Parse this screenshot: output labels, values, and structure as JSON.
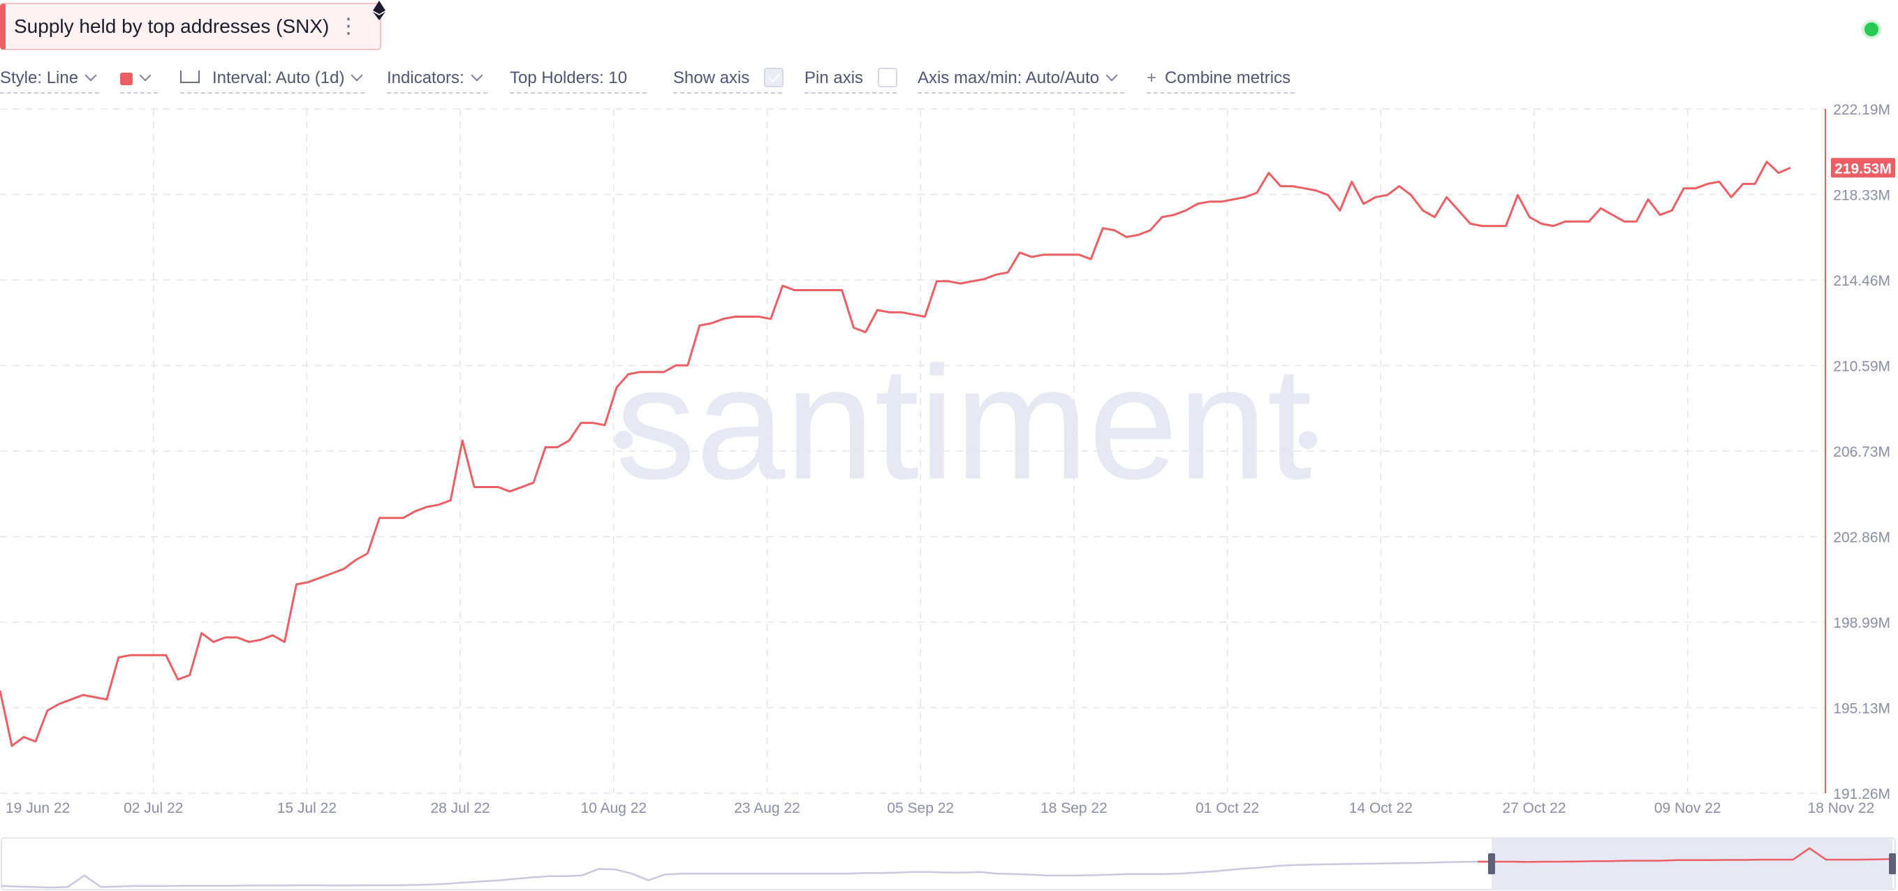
{
  "metric": {
    "title": "Supply held by top addresses (SNX)"
  },
  "toolbar": {
    "style_label": "Style: Line",
    "interval_label": "Interval: Auto (1d)",
    "indicators_label": "Indicators:",
    "top_holders_label": "Top Holders: 10",
    "show_axis_label": "Show axis",
    "show_axis_checked": true,
    "pin_axis_label": "Pin axis",
    "pin_axis_checked": false,
    "axis_maxmin_label": "Axis max/min: Auto/Auto",
    "combine_label": "Combine metrics"
  },
  "colors": {
    "series": "#eb5e64",
    "navigator_series": "#c7cade",
    "navigator_selection": "#e6e8f3"
  },
  "icons": [
    "kebab-menu-icon",
    "ethereum-icon",
    "chevron-down-icon",
    "ruler-icon",
    "plus-icon",
    "checkbox-icon",
    "status-dot-icon"
  ],
  "watermark": "santiment",
  "chart_data": {
    "type": "line",
    "series": [
      {
        "unit": "M",
        "last_value_label": "219.53M",
        "x": [
          "2022-06-19",
          "2022-06-20",
          "2022-06-21",
          "2022-06-22",
          "2022-06-23",
          "2022-06-24",
          "2022-06-25",
          "2022-06-26",
          "2022-06-27",
          "2022-06-28",
          "2022-06-29",
          "2022-06-30",
          "2022-07-01",
          "2022-07-02",
          "2022-07-03",
          "2022-07-04",
          "2022-07-05",
          "2022-07-06",
          "2022-07-07",
          "2022-07-08",
          "2022-07-09",
          "2022-07-10",
          "2022-07-11",
          "2022-07-12",
          "2022-07-13",
          "2022-07-14",
          "2022-07-15",
          "2022-07-16",
          "2022-07-17",
          "2022-07-18",
          "2022-07-19",
          "2022-07-20",
          "2022-07-21",
          "2022-07-22",
          "2022-07-23",
          "2022-07-24",
          "2022-07-25",
          "2022-07-26",
          "2022-07-27",
          "2022-07-28",
          "2022-07-29",
          "2022-07-30",
          "2022-07-31",
          "2022-08-01",
          "2022-08-02",
          "2022-08-03",
          "2022-08-04",
          "2022-08-05",
          "2022-08-06",
          "2022-08-07",
          "2022-08-08",
          "2022-08-09",
          "2022-08-10",
          "2022-08-11",
          "2022-08-12",
          "2022-08-13",
          "2022-08-14",
          "2022-08-15",
          "2022-08-16",
          "2022-08-17",
          "2022-08-18",
          "2022-08-19",
          "2022-08-20",
          "2022-08-21",
          "2022-08-22",
          "2022-08-23",
          "2022-08-24",
          "2022-08-25",
          "2022-08-26",
          "2022-08-27",
          "2022-08-28",
          "2022-08-29",
          "2022-08-30",
          "2022-08-31",
          "2022-09-01",
          "2022-09-02",
          "2022-09-03",
          "2022-09-04",
          "2022-09-05",
          "2022-09-06",
          "2022-09-07",
          "2022-09-08",
          "2022-09-09",
          "2022-09-10",
          "2022-09-11",
          "2022-09-12",
          "2022-09-13",
          "2022-09-14",
          "2022-09-15",
          "2022-09-16",
          "2022-09-17",
          "2022-09-18",
          "2022-09-19",
          "2022-09-20",
          "2022-09-21",
          "2022-09-22",
          "2022-09-23",
          "2022-09-24",
          "2022-09-25",
          "2022-09-26",
          "2022-09-27",
          "2022-09-28",
          "2022-09-29",
          "2022-09-30",
          "2022-10-01",
          "2022-10-02",
          "2022-10-03",
          "2022-10-04",
          "2022-10-05",
          "2022-10-06",
          "2022-10-07",
          "2022-10-08",
          "2022-10-09",
          "2022-10-10",
          "2022-10-11",
          "2022-10-12",
          "2022-10-13",
          "2022-10-14",
          "2022-10-15",
          "2022-10-16",
          "2022-10-17",
          "2022-10-18",
          "2022-10-19",
          "2022-10-20",
          "2022-10-21",
          "2022-10-22",
          "2022-10-23",
          "2022-10-24",
          "2022-10-25",
          "2022-10-26",
          "2022-10-27",
          "2022-10-28",
          "2022-10-29",
          "2022-10-30",
          "2022-10-31",
          "2022-11-01",
          "2022-11-02",
          "2022-11-03",
          "2022-11-04",
          "2022-11-05",
          "2022-11-06",
          "2022-11-07",
          "2022-11-08",
          "2022-11-09",
          "2022-11-10",
          "2022-11-11",
          "2022-11-12",
          "2022-11-13",
          "2022-11-14",
          "2022-11-15",
          "2022-11-16",
          "2022-11-17"
        ],
        "values": [
          195.9,
          193.4,
          193.8,
          193.6,
          195.0,
          195.3,
          195.5,
          195.7,
          195.6,
          195.5,
          197.4,
          197.5,
          197.5,
          197.5,
          197.5,
          196.4,
          196.6,
          198.5,
          198.1,
          198.3,
          198.3,
          198.1,
          198.2,
          198.4,
          198.1,
          200.7,
          200.8,
          201.0,
          201.2,
          201.4,
          201.8,
          202.1,
          203.7,
          203.7,
          203.7,
          204.0,
          204.2,
          204.3,
          204.5,
          207.2,
          205.1,
          205.1,
          205.1,
          204.9,
          205.1,
          205.3,
          206.9,
          206.9,
          207.2,
          208.0,
          208.0,
          207.9,
          209.6,
          210.2,
          210.3,
          210.3,
          210.3,
          210.6,
          210.6,
          212.4,
          212.5,
          212.7,
          212.8,
          212.8,
          212.8,
          212.7,
          214.2,
          214.0,
          214.0,
          214.0,
          214.0,
          214.0,
          212.3,
          212.1,
          213.1,
          213.0,
          213.0,
          212.9,
          212.8,
          214.4,
          214.4,
          214.3,
          214.4,
          214.5,
          214.7,
          214.8,
          215.7,
          215.5,
          215.6,
          215.6,
          215.6,
          215.6,
          215.4,
          216.8,
          216.7,
          216.4,
          216.5,
          216.7,
          217.3,
          217.4,
          217.6,
          217.9,
          218.0,
          218.0,
          218.1,
          218.2,
          218.4,
          219.3,
          218.7,
          218.7,
          218.6,
          218.5,
          218.3,
          217.6,
          218.9,
          217.9,
          218.2,
          218.3,
          218.7,
          218.3,
          217.6,
          217.3,
          218.2,
          217.6,
          217.0,
          216.9,
          216.9,
          216.9,
          218.3,
          217.3,
          217.0,
          216.9,
          217.1,
          217.1,
          217.1,
          217.7,
          217.4,
          217.1,
          217.1,
          218.1,
          217.4,
          217.6,
          218.6,
          218.6,
          218.8,
          218.9,
          218.2,
          218.8,
          218.8,
          219.8,
          219.3,
          219.53
        ]
      }
    ],
    "x_tick_labels": [
      "19 Jun 22",
      "02 Jul 22",
      "15 Jul 22",
      "28 Jul 22",
      "10 Aug 22",
      "23 Aug 22",
      "05 Sep 22",
      "18 Sep 22",
      "01 Oct 22",
      "14 Oct 22",
      "27 Oct 22",
      "09 Nov 22",
      "18 Nov 22"
    ],
    "y_tick_labels": [
      "222.19M",
      "218.33M",
      "214.46M",
      "210.59M",
      "206.73M",
      "202.86M",
      "198.99M",
      "195.13M",
      "191.26M"
    ],
    "ylim": [
      191.26,
      222.19
    ],
    "y_axis_position": "right",
    "grid": true,
    "legend": "none",
    "navigator": {
      "selection": [
        "2022-06-19",
        "2022-11-17"
      ],
      "shape": [
        0.14,
        0.12,
        0.1,
        0.08,
        0.1,
        0.55,
        0.1,
        0.12,
        0.14,
        0.14,
        0.14,
        0.15,
        0.15,
        0.15,
        0.15,
        0.16,
        0.16,
        0.16,
        0.17,
        0.17,
        0.16,
        0.16,
        0.17,
        0.17,
        0.17,
        0.18,
        0.2,
        0.23,
        0.28,
        0.32,
        0.36,
        0.42,
        0.47,
        0.52,
        0.52,
        0.55,
        0.8,
        0.78,
        0.62,
        0.36,
        0.58,
        0.62,
        0.62,
        0.62,
        0.62,
        0.62,
        0.62,
        0.62,
        0.62,
        0.62,
        0.62,
        0.62,
        0.64,
        0.64,
        0.66,
        0.68,
        0.68,
        0.66,
        0.66,
        0.68,
        0.62,
        0.6,
        0.58,
        0.55,
        0.55,
        0.55,
        0.56,
        0.58,
        0.6,
        0.6,
        0.6,
        0.62,
        0.66,
        0.7,
        0.76,
        0.82,
        0.86,
        0.92,
        0.95,
        0.97,
        0.98,
        0.99,
        1.0,
        1.01,
        1.02,
        1.03,
        1.04,
        1.06,
        1.07,
        1.08,
        1.08,
        1.08,
        1.07,
        1.08,
        1.08,
        1.09,
        1.1,
        1.1,
        1.12,
        1.12,
        1.12,
        1.14,
        1.14,
        1.14,
        1.15,
        1.15,
        1.16,
        1.16,
        1.16,
        1.6,
        1.16,
        1.16,
        1.16,
        1.17,
        1.18
      ]
    }
  }
}
